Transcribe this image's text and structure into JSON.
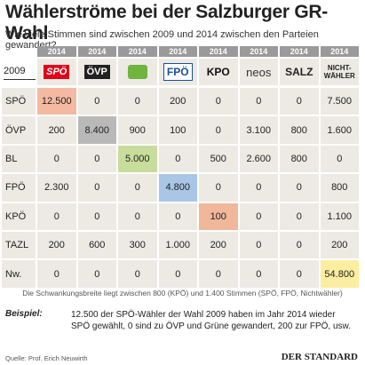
{
  "header": {
    "title": "Wählerströme bei der Salzburger GR-Wahl",
    "subtitle": "Wie viele Stimmen sind zwischen 2009 und 2014 zwischen den Parteien gewandert?"
  },
  "table": {
    "row_year": "2009",
    "column_year": "2014",
    "columns": [
      "SPÖ",
      "ÖVP",
      null,
      "FPÖ",
      "KPO",
      "neos",
      "SALZ",
      "NICHT-WÄHLER"
    ],
    "rows": [
      {
        "label": "SPÖ",
        "cells": [
          "12.500",
          "0",
          "0",
          "200",
          "0",
          "0",
          "0",
          "7.500"
        ]
      },
      {
        "label": "ÖVP",
        "cells": [
          "200",
          "8.400",
          "900",
          "100",
          "0",
          "3.100",
          "800",
          "1.600"
        ]
      },
      {
        "label": "BL",
        "cells": [
          "0",
          "0",
          "5.000",
          "0",
          "500",
          "2.600",
          "800",
          "0"
        ]
      },
      {
        "label": "FPÖ",
        "cells": [
          "2.300",
          "0",
          "0",
          "4.800",
          "0",
          "0",
          "0",
          "800"
        ]
      },
      {
        "label": "KPÖ",
        "cells": [
          "0",
          "0",
          "0",
          "0",
          "100",
          "0",
          "0",
          "1.100"
        ]
      },
      {
        "label": "TAZL",
        "cells": [
          "200",
          "600",
          "300",
          "1.000",
          "200",
          "0",
          "0",
          "200"
        ]
      },
      {
        "label": "Nw.",
        "cells": [
          "0",
          "0",
          "0",
          "0",
          "0",
          "0",
          "0",
          "54.800"
        ]
      }
    ]
  },
  "footnote": "Die Schwankungsbreite liegt zwischen 800 (KPÖ) und 1.400  Stimmen (SPÖ, FPÖ, Nichtwähler)",
  "example": {
    "label": "Beispiel:",
    "text": "12.500 der SPÖ-Wähler der Wahl 2009 haben im Jahr 2014 wieder SPÖ gewählt, 0 sind zu ÖVP und Grüne gewandert, 200 zur FPÖ, usw."
  },
  "source": "Quelle: Prof. Erich Neuwirth",
  "brand": "DER STANDARD"
}
